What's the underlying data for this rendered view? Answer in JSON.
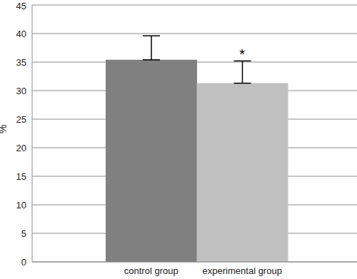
{
  "chart_data": {
    "type": "bar",
    "categories": [
      "control group",
      "experimental group"
    ],
    "values": [
      35.4,
      31.3
    ],
    "errors": [
      4.2,
      3.9
    ],
    "colors": [
      "#808080",
      "#c0c0c0"
    ],
    "y_label": "%",
    "ylim": [
      0,
      45
    ],
    "yticks": [
      0,
      5,
      10,
      15,
      20,
      25,
      30,
      35,
      40,
      45
    ],
    "grid": true,
    "annotations": [
      {
        "text": "*",
        "category": "experimental group"
      }
    ]
  }
}
